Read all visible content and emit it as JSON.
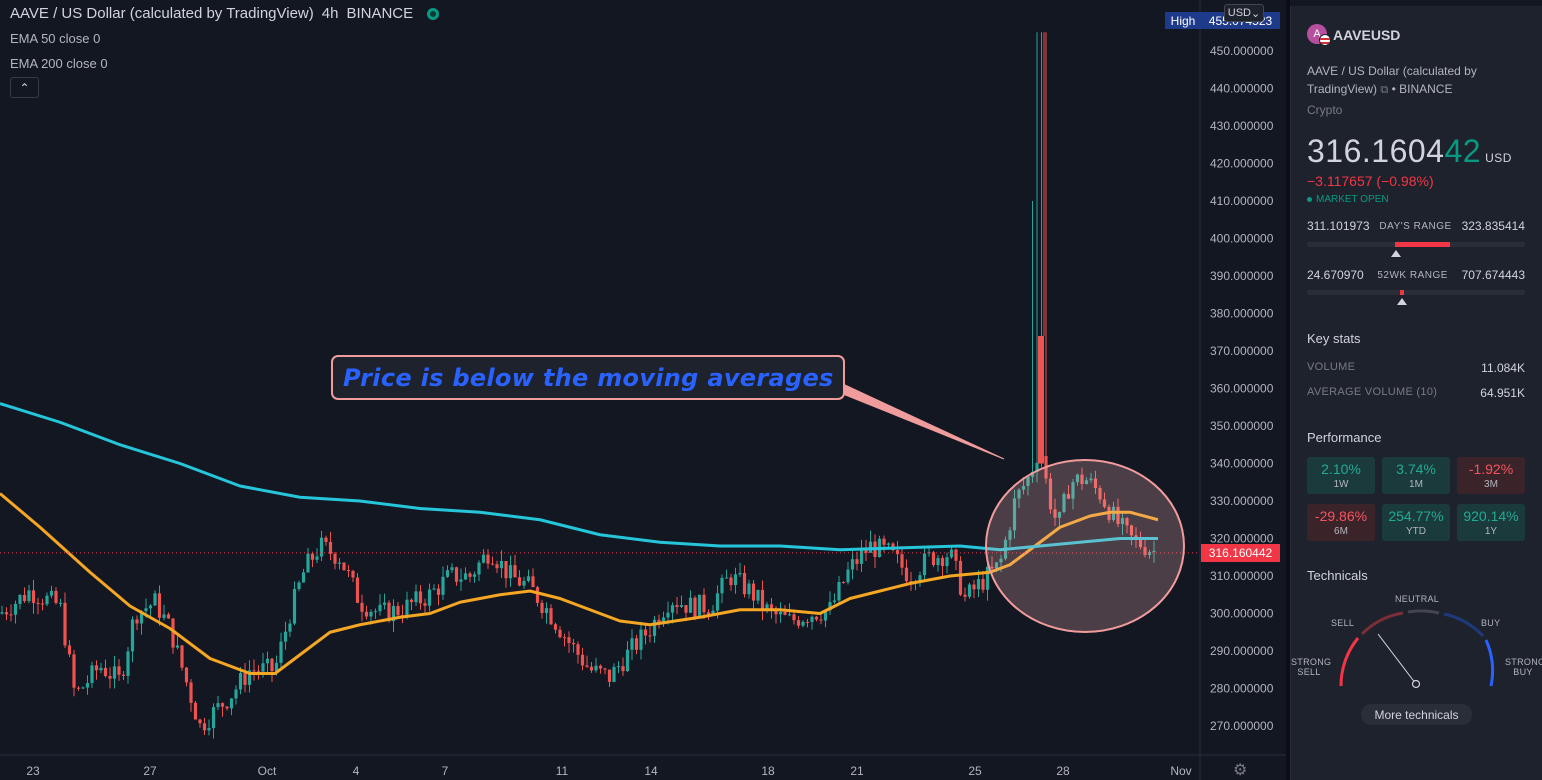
{
  "chart": {
    "legend_title": "AAVE / US Dollar (calculated by TradingView)",
    "interval": "4h",
    "exchange": "BINANCE",
    "indicators": [
      "EMA 50 close 0",
      "EMA 200 close 0"
    ],
    "currency_button": "USD",
    "high_label": "High",
    "high_value": "455.074523",
    "last_price_label": "316.160442",
    "annotation_text": "Price is below the moving averages",
    "collapse_icon": "chevron-up-icon",
    "settings_icon": "gear-icon",
    "colors": {
      "up": "#26a69a",
      "down": "#ef5350",
      "ema50": "#f5a623",
      "ema200": "#26c6da",
      "annotation_border": "#f19c9c",
      "annotation_text": "#2962ff"
    }
  },
  "chart_data": {
    "type": "candlestick",
    "price_axis_ticks": [
      "450.000000",
      "440.000000",
      "430.000000",
      "420.000000",
      "410.000000",
      "400.000000",
      "390.000000",
      "380.000000",
      "370.000000",
      "360.000000",
      "350.000000",
      "340.000000",
      "330.000000",
      "320.000000",
      "310.000000",
      "300.000000",
      "290.000000",
      "280.000000",
      "270.000000"
    ],
    "time_axis_ticks": [
      "23",
      "27",
      "Oct",
      "4",
      "7",
      "11",
      "14",
      "18",
      "21",
      "25",
      "28",
      "Nov"
    ],
    "ylim": [
      264,
      460
    ],
    "series": [
      {
        "name": "EMA 50 close 0",
        "color": "#f5a623",
        "points": [
          [
            0,
            332
          ],
          [
            40,
            323
          ],
          [
            90,
            311
          ],
          [
            130,
            302
          ],
          [
            170,
            296
          ],
          [
            210,
            288
          ],
          [
            250,
            284
          ],
          [
            275,
            284
          ],
          [
            300,
            289
          ],
          [
            330,
            295
          ],
          [
            360,
            297
          ],
          [
            400,
            299
          ],
          [
            430,
            300
          ],
          [
            460,
            303
          ],
          [
            500,
            305
          ],
          [
            530,
            306
          ],
          [
            560,
            304
          ],
          [
            590,
            301
          ],
          [
            620,
            298
          ],
          [
            650,
            297
          ],
          [
            700,
            299
          ],
          [
            740,
            301
          ],
          [
            780,
            301
          ],
          [
            820,
            300
          ],
          [
            850,
            304
          ],
          [
            880,
            306
          ],
          [
            910,
            308
          ],
          [
            950,
            310
          ],
          [
            990,
            311
          ],
          [
            1010,
            313
          ],
          [
            1040,
            319
          ],
          [
            1060,
            323
          ],
          [
            1090,
            326
          ],
          [
            1110,
            327
          ],
          [
            1130,
            327
          ],
          [
            1158,
            325
          ]
        ]
      },
      {
        "name": "EMA 200 close 0",
        "color": "#26c6da",
        "points": [
          [
            0,
            356
          ],
          [
            60,
            351
          ],
          [
            120,
            345
          ],
          [
            180,
            340
          ],
          [
            240,
            334
          ],
          [
            300,
            331
          ],
          [
            360,
            330
          ],
          [
            420,
            328
          ],
          [
            480,
            327
          ],
          [
            540,
            325
          ],
          [
            600,
            321
          ],
          [
            660,
            319
          ],
          [
            720,
            318
          ],
          [
            780,
            318
          ],
          [
            840,
            317
          ],
          [
            900,
            317.5
          ],
          [
            960,
            318
          ],
          [
            1000,
            317
          ],
          [
            1040,
            318
          ],
          [
            1080,
            319
          ],
          [
            1120,
            320
          ],
          [
            1158,
            320
          ]
        ]
      }
    ],
    "last_price": 316.160442,
    "high": 455.074523
  },
  "panel": {
    "symbol": "AAVEUSD",
    "logo_text": "A",
    "description_line1": "AAVE / US Dollar (calculated by",
    "description_line2": "TradingView)",
    "exchange": "BINANCE",
    "external_icon": "external-link-icon",
    "category": "Crypto",
    "price_main": "316.1604",
    "price_tail": "42",
    "currency": "USD",
    "change": "−3.117657 (−0.98%)",
    "market_status": "MARKET OPEN",
    "days_range": {
      "low": "311.101973",
      "label": "DAY'S RANGE",
      "high": "323.835414",
      "position": 0.41
    },
    "wk52_range": {
      "low": "24.670970",
      "label": "52WK RANGE",
      "high": "707.674443",
      "position": 0.43
    },
    "key_stats_title": "Key stats",
    "key_stats": [
      {
        "label": "VOLUME",
        "value": "11.084K"
      },
      {
        "label": "AVERAGE VOLUME (10)",
        "value": "64.951K"
      }
    ],
    "performance_title": "Performance",
    "performance": [
      {
        "value": "2.10%",
        "period": "1W",
        "dir": "pos"
      },
      {
        "value": "3.74%",
        "period": "1M",
        "dir": "pos"
      },
      {
        "value": "-1.92%",
        "period": "3M",
        "dir": "neg"
      },
      {
        "value": "-29.86%",
        "period": "6M",
        "dir": "neg"
      },
      {
        "value": "254.77%",
        "period": "YTD",
        "dir": "pos"
      },
      {
        "value": "920.14%",
        "period": "1Y",
        "dir": "pos"
      }
    ],
    "technicals_title": "Technicals",
    "gauge": {
      "neutral": "NEUTRAL",
      "sell": "SELL",
      "buy": "BUY",
      "strong_sell_1": "STRONG",
      "strong_sell_2": "SELL",
      "strong_buy_1": "STRONG",
      "strong_buy_2": "BUY",
      "needle_level": "sell"
    },
    "more_button": "More technicals"
  }
}
